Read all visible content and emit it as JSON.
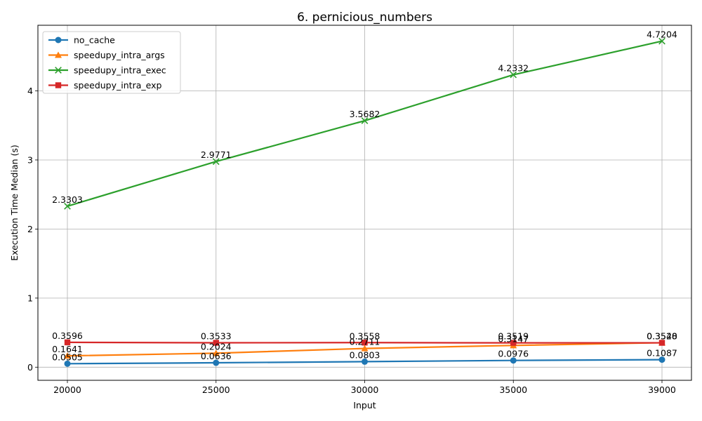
{
  "chart_data": {
    "type": "line",
    "title": "6. pernicious_numbers",
    "xlabel": "Input",
    "ylabel": "Execution Time Median (s)",
    "categories": [
      "20000",
      "25000",
      "30000",
      "35000",
      "39000"
    ],
    "x": [
      20000,
      25000,
      30000,
      35000,
      39000
    ],
    "ylim": [
      -0.19,
      4.95
    ],
    "yticks": [
      0,
      1,
      2,
      3,
      4
    ],
    "grid": true,
    "legend_position": "top-left",
    "series": [
      {
        "name": "no_cache",
        "color": "#1f77b4",
        "marker": "circle",
        "values": [
          0.0505,
          0.0636,
          0.0803,
          0.0976,
          0.1087
        ],
        "labels": [
          "0.0505",
          "0.0636",
          "0.0803",
          "0.0976",
          "0.1087"
        ]
      },
      {
        "name": "speedupy_intra_args",
        "color": "#ff7f0e",
        "marker": "triangle",
        "values": [
          0.1641,
          0.2024,
          0.2711,
          0.3147,
          0.354
        ],
        "labels": [
          "0.1641",
          "0.2024",
          "0.2711",
          "0.3147",
          "0.3540"
        ]
      },
      {
        "name": "speedupy_intra_exec",
        "color": "#2ca02c",
        "marker": "x",
        "values": [
          2.3303,
          2.9771,
          3.5682,
          4.2332,
          4.7204
        ],
        "labels": [
          "2.3303",
          "2.9771",
          "3.5682",
          "4.2332",
          "4.7204"
        ]
      },
      {
        "name": "speedupy_intra_exp",
        "color": "#d62728",
        "marker": "square",
        "values": [
          0.3596,
          0.3533,
          0.3558,
          0.3519,
          0.3528
        ],
        "labels": [
          "0.3596",
          "0.3533",
          "0.3558",
          "0.3519",
          "0.3528"
        ]
      }
    ]
  }
}
